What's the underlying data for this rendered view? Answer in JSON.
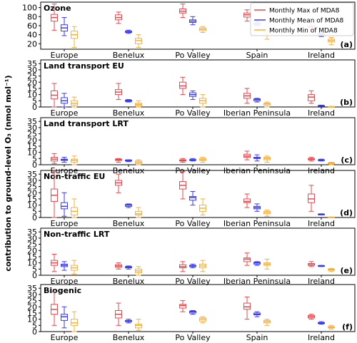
{
  "figure": {
    "ylabel": "contribution to ground-level O₃ (nmol mol⁻¹)"
  },
  "legend": {
    "placement": "top-right of panel (a)",
    "items": [
      {
        "label": "Monthly Max of MDA8",
        "color": "#e8484d"
      },
      {
        "label": "Monthly Mean of MDA8",
        "color": "#3a3af0"
      },
      {
        "label": "Monthly Min of MDA8",
        "color": "#f5b041"
      }
    ]
  },
  "chart_data": [
    {
      "type": "box",
      "title": "Ozone",
      "panel_label": "(a)",
      "categories": [
        "Europe",
        "Benelux",
        "Po Valley",
        "Spain",
        "Ireland"
      ],
      "yticks": [
        20,
        40,
        60,
        80,
        100
      ],
      "ylim": [
        8,
        112
      ],
      "series": [
        {
          "name": "Monthly Max of MDA8",
          "boxes": [
            [
              50,
              70,
              78,
              85,
              108
            ],
            [
              65,
              73,
              78,
              84,
              90
            ],
            [
              78,
              88,
              92,
              97,
              108
            ],
            [
              70,
              79,
              84,
              88,
              95
            ],
            [
              52,
              56,
              58,
              60,
              64
            ]
          ]
        },
        {
          "name": "Monthly Mean of MDA8",
          "boxes": [
            [
              38,
              48,
              55,
              62,
              78
            ],
            [
              43,
              45,
              46,
              48,
              50
            ],
            [
              62,
              67,
              70,
              73,
              80
            ],
            [
              60,
              62,
              64,
              66,
              70
            ],
            [
              36,
              39,
              41,
              43,
              46
            ]
          ]
        },
        {
          "name": "Monthly Min of MDA8",
          "boxes": [
            [
              12,
              32,
              40,
              48,
              58
            ],
            [
              12,
              20,
              27,
              32,
              40
            ],
            [
              45,
              49,
              52,
              55,
              58
            ],
            [
              30,
              43,
              48,
              52,
              58
            ],
            [
              18,
              24,
              27,
              30,
              34
            ]
          ]
        }
      ]
    },
    {
      "type": "box",
      "title": "Land transport EU",
      "panel_label": "(b)",
      "categories": [
        "Europe",
        "Benelux",
        "Po Valley",
        "Iberian Peninsula",
        "Ireland"
      ],
      "yticks": [
        0,
        5,
        10,
        15,
        20,
        25,
        30,
        35
      ],
      "ylim": [
        0,
        38
      ],
      "series": [
        {
          "name": "Monthly Max of MDA8",
          "boxes": [
            [
              0,
              6.5,
              9.5,
              13,
              19
            ],
            [
              6,
              10,
              12,
              14,
              19
            ],
            [
              10,
              15,
              17,
              20,
              24
            ],
            [
              3,
              7,
              9,
              11,
              15
            ],
            [
              3,
              5,
              8,
              10,
              13
            ]
          ]
        },
        {
          "name": "Monthly Mean of MDA8",
          "boxes": [
            [
              0,
              3,
              5,
              7.5,
              11
            ],
            [
              4,
              4.5,
              5,
              5.5,
              6
            ],
            [
              6,
              8.5,
              10,
              11.5,
              13
            ],
            [
              4,
              5,
              6,
              6.5,
              7
            ],
            [
              0.5,
              0.8,
              1,
              1.2,
              1.5
            ]
          ]
        },
        {
          "name": "Monthly Min of MDA8",
          "boxes": [
            [
              0,
              1.5,
              3,
              5,
              8
            ],
            [
              0,
              1,
              2,
              3,
              5
            ],
            [
              0,
              3,
              5,
              7,
              10
            ],
            [
              0,
              1.5,
              2.5,
              3,
              4
            ],
            [
              0,
              0.1,
              0.2,
              0.3,
              0.5
            ]
          ]
        }
      ]
    },
    {
      "type": "box",
      "title": "Land transport LRT",
      "panel_label": "(c)",
      "categories": [
        "Europe",
        "Benelux",
        "Po Valley",
        "Iberian Peninsula",
        "Ireland"
      ],
      "yticks": [
        0,
        5,
        10,
        15,
        20,
        25,
        30,
        35
      ],
      "ylim": [
        0,
        38
      ],
      "series": [
        {
          "name": "Monthly Max of MDA8",
          "boxes": [
            [
              1,
              3,
              4.5,
              6,
              9
            ],
            [
              2,
              3.5,
              4,
              4.5,
              5
            ],
            [
              2,
              3,
              3.5,
              4,
              5
            ],
            [
              4,
              6,
              7,
              8.5,
              11
            ],
            [
              3,
              4,
              4.5,
              5,
              6
            ]
          ]
        },
        {
          "name": "Monthly Mean of MDA8",
          "boxes": [
            [
              2,
              3.5,
              4,
              4.5,
              6
            ],
            [
              2.5,
              3,
              3.5,
              3.8,
              4
            ],
            [
              3,
              3.5,
              4,
              4.2,
              5
            ],
            [
              3,
              5,
              5.5,
              6,
              8
            ],
            [
              3,
              3.5,
              3.8,
              4,
              4.5
            ]
          ]
        },
        {
          "name": "Monthly Min of MDA8",
          "boxes": [
            [
              0,
              2,
              3.5,
              4.5,
              7
            ],
            [
              0,
              1,
              2,
              3,
              4
            ],
            [
              2,
              3.5,
              4,
              5,
              6
            ],
            [
              2,
              4,
              5,
              6,
              7
            ],
            [
              0,
              0.5,
              1,
              1.5,
              2
            ]
          ]
        }
      ]
    },
    {
      "type": "box",
      "title": "Non-traffic EU",
      "panel_label": "(d)",
      "categories": [
        "Europe",
        "Benelux",
        "Po Valley",
        "Iberian Peninsula",
        "Ireland"
      ],
      "yticks": [
        0,
        5,
        10,
        15,
        20,
        25,
        30,
        35
      ],
      "ylim": [
        0,
        38
      ],
      "series": [
        {
          "name": "Monthly Max of MDA8",
          "boxes": [
            [
              0,
              13,
              18,
              23,
              37
            ],
            [
              20,
              26,
              28,
              30,
              35
            ],
            [
              15,
              23,
              26,
              29,
              37
            ],
            [
              8,
              12,
              13,
              15,
              19
            ],
            [
              5,
              12,
              15,
              19,
              26
            ]
          ]
        },
        {
          "name": "Monthly Mean of MDA8",
          "boxes": [
            [
              1,
              7,
              9,
              12,
              20
            ],
            [
              8,
              9,
              10,
              10.5,
              11
            ],
            [
              10,
              14,
              16,
              17,
              21
            ],
            [
              5,
              7,
              8,
              9,
              11
            ],
            [
              2,
              2.2,
              2.5,
              2.8,
              3
            ]
          ]
        },
        {
          "name": "Monthly Min of MDA8",
          "boxes": [
            [
              0,
              2,
              5,
              8,
              15
            ],
            [
              0,
              2,
              3,
              5,
              8
            ],
            [
              2,
              5,
              7.5,
              10,
              15
            ],
            [
              1,
              3,
              4,
              5,
              6
            ],
            [
              0,
              0.1,
              0.2,
              0.3,
              0.5
            ]
          ]
        }
      ]
    },
    {
      "type": "box",
      "title": "Non-traffic LRT",
      "panel_label": "(e)",
      "categories": [
        "Europe",
        "Benelux",
        "Po Valley",
        "Iberian Peninsula",
        "Ireland"
      ],
      "yticks": [
        0,
        5,
        10,
        15,
        20,
        25,
        30,
        35
      ],
      "ylim": [
        0,
        38
      ],
      "series": [
        {
          "name": "Monthly Max of MDA8",
          "boxes": [
            [
              3,
              8,
              10,
              12,
              17
            ],
            [
              5,
              6.5,
              7.5,
              8.5,
              10
            ],
            [
              3,
              6,
              7,
              8.5,
              11
            ],
            [
              8,
              11,
              13,
              14,
              18
            ],
            [
              7,
              8,
              8.5,
              9.5,
              11
            ]
          ]
        },
        {
          "name": "Monthly Mean of MDA8",
          "boxes": [
            [
              4,
              7,
              8,
              9,
              11
            ],
            [
              5,
              6,
              6.5,
              7,
              7.5
            ],
            [
              6,
              7,
              7.5,
              8,
              9
            ],
            [
              8,
              9,
              10,
              10.5,
              11
            ],
            [
              7,
              7.3,
              7.5,
              7.8,
              8
            ]
          ]
        },
        {
          "name": "Monthly Min of MDA8",
          "boxes": [
            [
              1,
              4,
              6,
              8,
              12
            ],
            [
              0,
              2,
              3.5,
              5,
              7
            ],
            [
              3,
              6,
              7.5,
              9,
              12
            ],
            [
              5,
              8,
              9,
              10,
              13
            ],
            [
              3,
              4,
              4.5,
              5,
              5.5
            ]
          ]
        }
      ]
    },
    {
      "type": "box",
      "title": "Biogenic",
      "panel_label": "(f)",
      "categories": [
        "Europe",
        "Benelux",
        "Po Valley",
        "Spain",
        "Ireland"
      ],
      "yticks": [
        0,
        5,
        10,
        15,
        20,
        25,
        30,
        35
      ],
      "ylim": [
        0,
        38
      ],
      "series": [
        {
          "name": "Monthly Max of MDA8",
          "boxes": [
            [
              5,
              14,
              18,
              22,
              32
            ],
            [
              5,
              11,
              14,
              17,
              23
            ],
            [
              16,
              19,
              21,
              22,
              25
            ],
            [
              10,
              18,
              20,
              23,
              28
            ],
            [
              10,
              11,
              12,
              13,
              14
            ]
          ]
        },
        {
          "name": "Monthly Mean of MDA8",
          "boxes": [
            [
              3,
              9,
              12,
              14,
              20
            ],
            [
              7,
              8,
              8.5,
              9,
              10
            ],
            [
              14,
              15,
              16,
              16.5,
              17
            ],
            [
              12,
              13.5,
              14,
              15,
              16
            ],
            [
              6,
              6.5,
              7,
              7.3,
              8
            ]
          ]
        },
        {
          "name": "Monthly Min of MDA8",
          "boxes": [
            [
              0,
              5,
              7,
              10,
              16
            ],
            [
              1,
              3,
              5,
              6,
              10
            ],
            [
              7,
              8.5,
              10,
              11,
              12
            ],
            [
              5,
              7,
              8,
              9,
              10
            ],
            [
              2,
              3,
              3.5,
              4,
              5
            ]
          ]
        }
      ]
    }
  ]
}
